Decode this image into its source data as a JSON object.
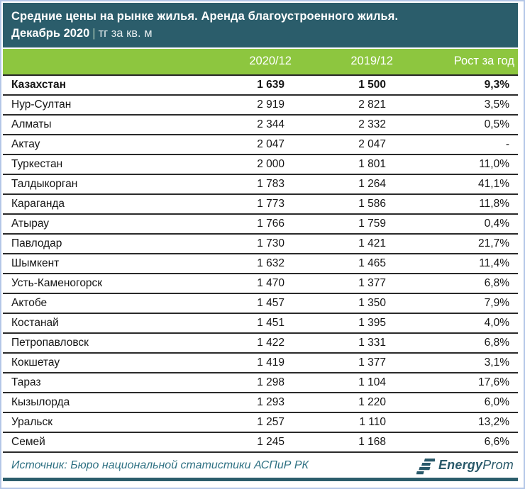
{
  "colors": {
    "title_bg": "#2b5d6b",
    "header_row_bg": "#8dc63f",
    "row_border": "#2a2a2a",
    "source_text": "#2f7183",
    "logo_color": "#29596a",
    "outer_border": "#b4c7e7",
    "bottom_bar": "#2b5d6b"
  },
  "header": {
    "title_line1": "Средние цены на рынке жилья. Аренда благоустроенного жилья.",
    "period": "Декабрь 2020",
    "separator": "|",
    "unit": "тг за кв. м"
  },
  "chart_data": {
    "type": "table",
    "title": "Средние цены на рынке жилья. Аренда благоустроенного жилья.",
    "subtitle": "Декабрь 2020 | тг за кв. м",
    "columns": [
      "",
      "2020/12",
      "2019/12",
      "Рост за год"
    ],
    "rows": [
      {
        "name": "Казахстан",
        "dec2020": "1 639",
        "dec2019": "1 500",
        "growth": "9,3%",
        "bold": true
      },
      {
        "name": "Нур-Султан",
        "dec2020": "2 919",
        "dec2019": "2 821",
        "growth": "3,5%",
        "bold": false
      },
      {
        "name": "Алматы",
        "dec2020": "2 344",
        "dec2019": "2 332",
        "growth": "0,5%",
        "bold": false
      },
      {
        "name": "Актау",
        "dec2020": "2 047",
        "dec2019": "2 047",
        "growth": "-",
        "bold": false
      },
      {
        "name": "Туркестан",
        "dec2020": "2 000",
        "dec2019": "1 801",
        "growth": "11,0%",
        "bold": false
      },
      {
        "name": "Талдыкорган",
        "dec2020": "1 783",
        "dec2019": "1 264",
        "growth": "41,1%",
        "bold": false
      },
      {
        "name": "Караганда",
        "dec2020": "1 773",
        "dec2019": "1 586",
        "growth": "11,8%",
        "bold": false
      },
      {
        "name": "Атырау",
        "dec2020": "1 766",
        "dec2019": "1 759",
        "growth": "0,4%",
        "bold": false
      },
      {
        "name": "Павлодар",
        "dec2020": "1 730",
        "dec2019": "1 421",
        "growth": "21,7%",
        "bold": false
      },
      {
        "name": "Шымкент",
        "dec2020": "1 632",
        "dec2019": "1 465",
        "growth": "11,4%",
        "bold": false
      },
      {
        "name": "Усть-Каменогорск",
        "dec2020": "1 470",
        "dec2019": "1 377",
        "growth": "6,8%",
        "bold": false
      },
      {
        "name": "Актобе",
        "dec2020": "1 457",
        "dec2019": "1 350",
        "growth": "7,9%",
        "bold": false
      },
      {
        "name": "Костанай",
        "dec2020": "1 451",
        "dec2019": "1 395",
        "growth": "4,0%",
        "bold": false
      },
      {
        "name": "Петропавловск",
        "dec2020": "1 422",
        "dec2019": "1 331",
        "growth": "6,8%",
        "bold": false
      },
      {
        "name": "Кокшетау",
        "dec2020": "1 419",
        "dec2019": "1 377",
        "growth": "3,1%",
        "bold": false
      },
      {
        "name": "Тараз",
        "dec2020": "1 298",
        "dec2019": "1 104",
        "growth": "17,6%",
        "bold": false
      },
      {
        "name": "Кызылорда",
        "dec2020": "1 293",
        "dec2019": "1 220",
        "growth": "6,0%",
        "bold": false
      },
      {
        "name": "Уральск",
        "dec2020": "1 257",
        "dec2019": "1 110",
        "growth": "13,2%",
        "bold": false
      },
      {
        "name": "Семей",
        "dec2020": "1 245",
        "dec2019": "1 168",
        "growth": "6,6%",
        "bold": false
      }
    ]
  },
  "footer": {
    "source": "Источник: Бюро национальной статистики АСПиР РК",
    "logo_bold": "Energy",
    "logo_light": "Prom"
  }
}
